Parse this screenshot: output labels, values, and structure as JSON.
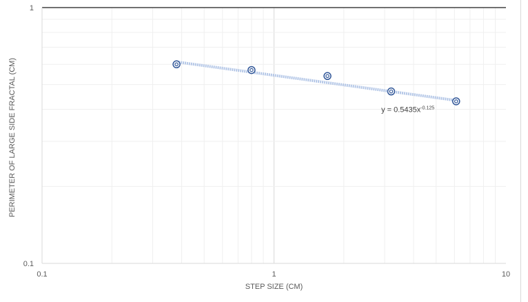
{
  "chart_data": {
    "type": "scatter",
    "title": "",
    "xlabel": "STEP SIZE (CM)",
    "ylabel": "PERIMETER OF LARGE SIDE FRACTAL (CM)",
    "x_scale": "log",
    "y_scale": "log",
    "xlim": [
      0.1,
      10
    ],
    "ylim": [
      0.1,
      1
    ],
    "x_tick_labels": [
      "0.1",
      "1",
      "10"
    ],
    "y_tick_labels": [
      "0.1",
      "1"
    ],
    "grid": true,
    "legend": "none",
    "series": [
      {
        "x": [
          0.38,
          0.8,
          1.7,
          3.2,
          6.1
        ],
        "y": [
          0.6,
          0.57,
          0.54,
          0.47,
          0.43
        ]
      }
    ],
    "trendline": {
      "type": "power",
      "a": 0.5435,
      "b": -0.125,
      "x_range": [
        0.38,
        6.1
      ],
      "label_prefix": "y = 0.5435x",
      "label_exponent": "-0.125"
    },
    "colors": {
      "marker": "#2f5597",
      "trendline": "#b4c7e7",
      "major_grid": "#d9d9d9",
      "minor_grid": "#efefef",
      "top_axis": "#404040"
    }
  }
}
